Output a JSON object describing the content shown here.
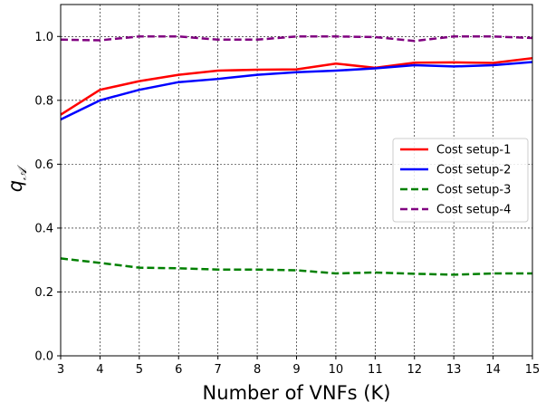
{
  "chart_data": {
    "type": "line",
    "title": "",
    "xlabel": "Number of VNFs (K)",
    "ylabel": "q",
    "ylabel_subscript": "𝒜",
    "xlim": [
      3,
      15
    ],
    "ylim": [
      0.0,
      1.1
    ],
    "x": [
      3,
      4,
      5,
      6,
      7,
      8,
      9,
      10,
      11,
      12,
      13,
      14,
      15
    ],
    "x_ticks": [
      "3",
      "4",
      "5",
      "6",
      "7",
      "8",
      "9",
      "10",
      "11",
      "12",
      "13",
      "14",
      "15"
    ],
    "y_ticks": [
      "0.0",
      "0.2",
      "0.4",
      "0.6",
      "0.8",
      "1.0"
    ],
    "grid": true,
    "legend_position": "center-right",
    "series": [
      {
        "name": "Cost setup-1",
        "color": "#ff0000",
        "dash": "solid",
        "values": [
          0.755,
          0.833,
          0.86,
          0.88,
          0.893,
          0.896,
          0.897,
          0.915,
          0.902,
          0.918,
          0.919,
          0.917,
          0.932
        ]
      },
      {
        "name": "Cost setup-2",
        "color": "#0000ff",
        "dash": "solid",
        "values": [
          0.74,
          0.8,
          0.833,
          0.857,
          0.867,
          0.88,
          0.888,
          0.893,
          0.9,
          0.91,
          0.906,
          0.91,
          0.92
        ]
      },
      {
        "name": "Cost setup-3",
        "color": "#008000",
        "dash": "dashed",
        "values": [
          0.305,
          0.291,
          0.276,
          0.274,
          0.27,
          0.27,
          0.268,
          0.258,
          0.261,
          0.257,
          0.254,
          0.258,
          0.258
        ]
      },
      {
        "name": "Cost setup-4",
        "color": "#800080",
        "dash": "dashed",
        "values": [
          0.99,
          0.988,
          1.0,
          1.0,
          0.99,
          0.99,
          1.0,
          1.0,
          0.998,
          0.986,
          1.0,
          1.0,
          0.995
        ]
      }
    ]
  }
}
